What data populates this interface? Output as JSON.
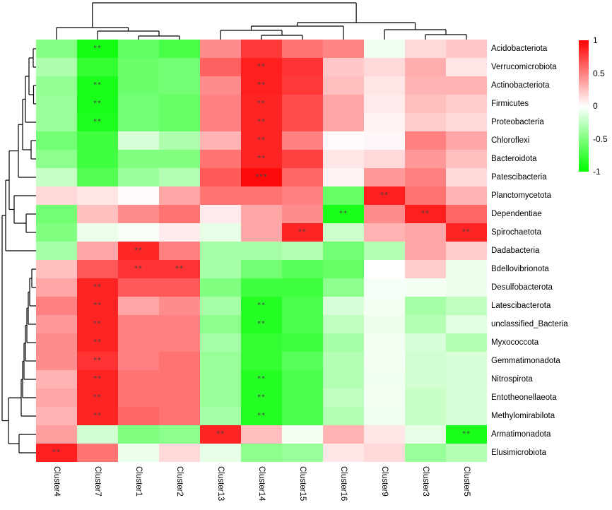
{
  "chart_data": {
    "type": "heatmap",
    "title": "",
    "columns": [
      "Cluster4",
      "Cluster7",
      "Cluster1",
      "Cluster2",
      "Cluster13",
      "Cluster14",
      "Cluster15",
      "Cluster16",
      "Cluster9",
      "Cluster3",
      "Cluster5"
    ],
    "rows": [
      "Acidobacteriota",
      "Verrucomicrobiota",
      "Actinobacteriota",
      "Firmicutes",
      "Proteobacteria",
      "Chloroflexi",
      "Bacteroidota",
      "Patescibacteria",
      "Planctomycetota",
      "Dependentiae",
      "Spirochaetota",
      "Dadabacteria",
      "Bdellovibrionota",
      "Desulfobacterota",
      "Latescibacterota",
      "unclassified_Bacteria",
      "Myxococcota",
      "Gemmatimonadota",
      "Nitrospirota",
      "Entotheonellaeota",
      "Methylomirabilota",
      "Armatimonadota",
      "Elusimicrobiota"
    ],
    "values": [
      [
        -0.48,
        -0.92,
        -0.62,
        -0.72,
        0.45,
        0.78,
        0.55,
        0.48,
        -0.06,
        0.15,
        0.22
      ],
      [
        -0.32,
        -0.8,
        -0.58,
        -0.55,
        0.62,
        0.88,
        0.8,
        0.22,
        0.15,
        0.32,
        0.1
      ],
      [
        -0.42,
        -0.9,
        -0.58,
        -0.55,
        0.45,
        0.88,
        0.78,
        0.25,
        0.1,
        0.3,
        0.3
      ],
      [
        -0.4,
        -0.9,
        -0.55,
        -0.6,
        0.5,
        0.86,
        0.7,
        0.35,
        0.08,
        0.25,
        0.2
      ],
      [
        -0.4,
        -0.88,
        -0.55,
        -0.6,
        0.5,
        0.86,
        0.7,
        0.35,
        0.05,
        0.2,
        0.15
      ],
      [
        -0.55,
        -0.75,
        -0.15,
        -0.32,
        0.3,
        0.86,
        0.5,
        0.02,
        0.03,
        0.5,
        0.35
      ],
      [
        -0.45,
        -0.75,
        -0.5,
        -0.5,
        0.55,
        0.86,
        0.75,
        0.1,
        0.15,
        0.4,
        0.25
      ],
      [
        -0.22,
        -0.68,
        -0.4,
        -0.3,
        0.65,
        0.96,
        0.6,
        0.05,
        0.4,
        0.5,
        0.15
      ],
      [
        0.15,
        0.1,
        0.02,
        0.35,
        0.55,
        0.55,
        0.5,
        -0.6,
        0.88,
        0.55,
        0.3
      ],
      [
        -0.55,
        0.25,
        0.45,
        0.55,
        0.08,
        0.35,
        0.45,
        -0.9,
        0.45,
        0.88,
        0.6
      ],
      [
        -0.5,
        -0.08,
        -0.03,
        0.08,
        -0.1,
        0.35,
        0.86,
        -0.2,
        0.3,
        0.35,
        0.86
      ],
      [
        -0.35,
        0.35,
        0.85,
        0.5,
        -0.35,
        -0.35,
        -0.3,
        -0.55,
        -0.3,
        0.35,
        0.2
      ],
      [
        0.25,
        0.65,
        0.8,
        0.8,
        -0.35,
        -0.55,
        -0.65,
        -0.6,
        0.0,
        0.2,
        -0.08
      ],
      [
        0.35,
        0.86,
        0.65,
        0.65,
        -0.5,
        -0.75,
        -0.75,
        -0.45,
        -0.04,
        -0.05,
        -0.08
      ],
      [
        0.5,
        0.86,
        0.35,
        0.45,
        -0.35,
        -0.86,
        -0.7,
        -0.15,
        -0.05,
        -0.35,
        -0.25
      ],
      [
        0.4,
        0.86,
        0.5,
        0.5,
        -0.45,
        -0.86,
        -0.7,
        -0.25,
        -0.07,
        -0.3,
        -0.12
      ],
      [
        0.45,
        0.86,
        0.5,
        0.5,
        -0.35,
        -0.8,
        -0.75,
        -0.35,
        -0.05,
        -0.15,
        -0.3
      ],
      [
        0.45,
        0.8,
        0.5,
        0.55,
        -0.4,
        -0.8,
        -0.65,
        -0.3,
        -0.05,
        -0.18,
        -0.15
      ],
      [
        0.3,
        0.86,
        0.55,
        0.55,
        -0.4,
        -0.86,
        -0.7,
        -0.3,
        -0.06,
        -0.18,
        -0.15
      ],
      [
        0.35,
        0.86,
        0.55,
        0.55,
        -0.4,
        -0.86,
        -0.7,
        -0.25,
        -0.05,
        -0.22,
        -0.15
      ],
      [
        0.3,
        0.86,
        0.6,
        0.55,
        -0.35,
        -0.86,
        -0.7,
        -0.3,
        -0.06,
        -0.22,
        -0.15
      ],
      [
        0.38,
        -0.18,
        -0.5,
        -0.45,
        0.86,
        0.25,
        -0.05,
        0.3,
        0.1,
        -0.1,
        -0.9
      ],
      [
        0.88,
        0.55,
        -0.08,
        0.15,
        -0.1,
        -0.45,
        -0.4,
        0.1,
        0.15,
        -0.4,
        -0.3
      ]
    ],
    "sig_marks": [
      [
        1,
        2,
        "**"
      ],
      [
        2,
        6,
        "**"
      ],
      [
        3,
        2,
        "**"
      ],
      [
        3,
        6,
        "**"
      ],
      [
        4,
        2,
        "**"
      ],
      [
        4,
        6,
        "**"
      ],
      [
        5,
        2,
        "**"
      ],
      [
        5,
        6,
        "**"
      ],
      [
        6,
        6,
        "**"
      ],
      [
        7,
        6,
        "**"
      ],
      [
        8,
        6,
        "***"
      ],
      [
        9,
        9,
        "**"
      ],
      [
        10,
        8,
        "**"
      ],
      [
        10,
        10,
        "**"
      ],
      [
        11,
        7,
        "**"
      ],
      [
        11,
        11,
        "**"
      ],
      [
        12,
        3,
        "**"
      ],
      [
        13,
        3,
        "**"
      ],
      [
        13,
        4,
        "**"
      ],
      [
        14,
        2,
        "**"
      ],
      [
        15,
        2,
        "**"
      ],
      [
        15,
        6,
        "**"
      ],
      [
        16,
        2,
        "**"
      ],
      [
        16,
        6,
        "**"
      ],
      [
        17,
        2,
        "**"
      ],
      [
        18,
        2,
        "**"
      ],
      [
        19,
        2,
        "**"
      ],
      [
        19,
        6,
        "**"
      ],
      [
        20,
        2,
        "**"
      ],
      [
        20,
        6,
        "**"
      ],
      [
        21,
        2,
        "**"
      ],
      [
        21,
        6,
        "**"
      ],
      [
        22,
        5,
        "**"
      ],
      [
        22,
        11,
        "**"
      ],
      [
        23,
        1,
        "**"
      ]
    ],
    "colormap": {
      "negative_color": "#00ff00",
      "zero_color": "#ffffff",
      "positive_color": "#ff0000",
      "domain": [
        -1,
        1
      ]
    },
    "legend": {
      "ticks": [
        "1",
        "0.5",
        "0",
        "-0.5",
        "-1"
      ],
      "tick_values": [
        1,
        0.5,
        0,
        -0.5,
        -1
      ]
    },
    "col_dendrogram_merges": [
      [
        -3,
        -4,
        5
      ],
      [
        -2,
        1,
        12
      ],
      [
        -1,
        2,
        17
      ],
      [
        -6,
        -7,
        6
      ],
      [
        -5,
        4,
        13
      ],
      [
        5,
        -8,
        19
      ],
      [
        -10,
        -11,
        7
      ],
      [
        -9,
        7,
        14
      ],
      [
        6,
        8,
        24
      ],
      [
        3,
        9,
        52
      ]
    ],
    "row_dendrogram_merges": [
      [
        -1,
        -2,
        4
      ],
      [
        -3,
        -4,
        3.5
      ],
      [
        1,
        2,
        10
      ],
      [
        3,
        -5,
        15
      ],
      [
        -6,
        -7,
        7
      ],
      [
        4,
        5,
        19
      ],
      [
        6,
        -8,
        25
      ],
      [
        -10,
        -11,
        14
      ],
      [
        -9,
        8,
        31
      ],
      [
        7,
        9,
        38
      ],
      [
        10,
        -12,
        43
      ],
      [
        -13,
        -14,
        6
      ],
      [
        12,
        -15,
        9
      ],
      [
        13,
        -16,
        11
      ],
      [
        14,
        -17,
        13
      ],
      [
        15,
        -18,
        15
      ],
      [
        16,
        -19,
        17
      ],
      [
        17,
        -20,
        19
      ],
      [
        18,
        -21,
        21
      ],
      [
        -22,
        -23,
        24
      ],
      [
        19,
        20,
        39
      ],
      [
        11,
        21,
        48
      ]
    ],
    "legend_position": "right",
    "grid": "off"
  }
}
